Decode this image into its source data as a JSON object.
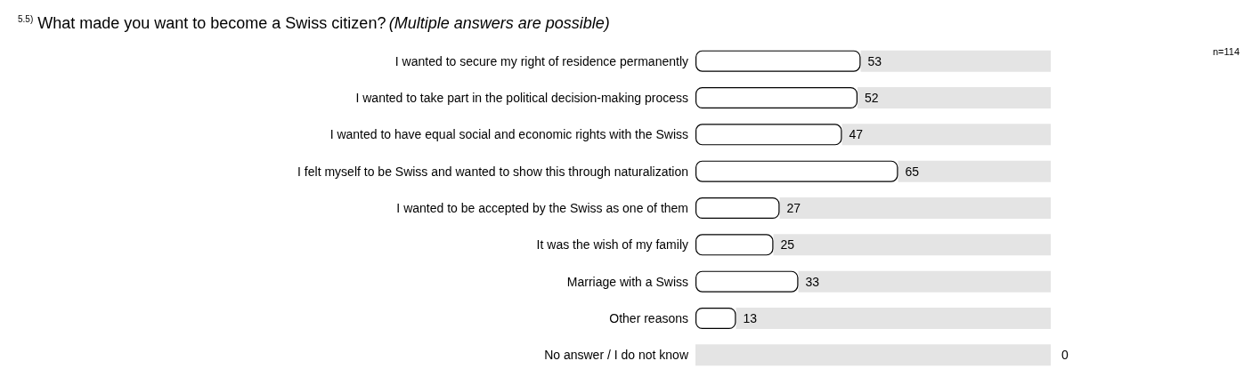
{
  "chart_data": {
    "type": "bar",
    "orientation": "horizontal",
    "title": "$^{5.5)}$ What made you want to become a Swiss citizen?",
    "subtitle": "(Multiple answers are possible)",
    "categories": [
      "I wanted to secure my right of residence permanently",
      "I wanted to take part in the political decision-making process",
      "I wanted to have equal social and economic rights with the Swiss",
      "I felt myself to be Swiss and wanted to show this through naturalization",
      "I wanted to be accepted by the Swiss as one of them",
      "It was the wish of my family",
      "Marriage with a Swiss",
      "Other reasons",
      "No answer / I do not know"
    ],
    "stacked": true,
    "series": [
      {
        "color": "#ffffff",
        "values": [
          53,
          52,
          47,
          65,
          27,
          25,
          33,
          13,
          0
        ],
        "data_labels": true
      },
      {
        "color": "#e4e4e4",
        "values": [
          61,
          62,
          67,
          49,
          87,
          89,
          81,
          101,
          114
        ]
      }
    ],
    "xlim": [
      0,
      114
    ],
    "annotations": [
      "n=114"
    ]
  }
}
